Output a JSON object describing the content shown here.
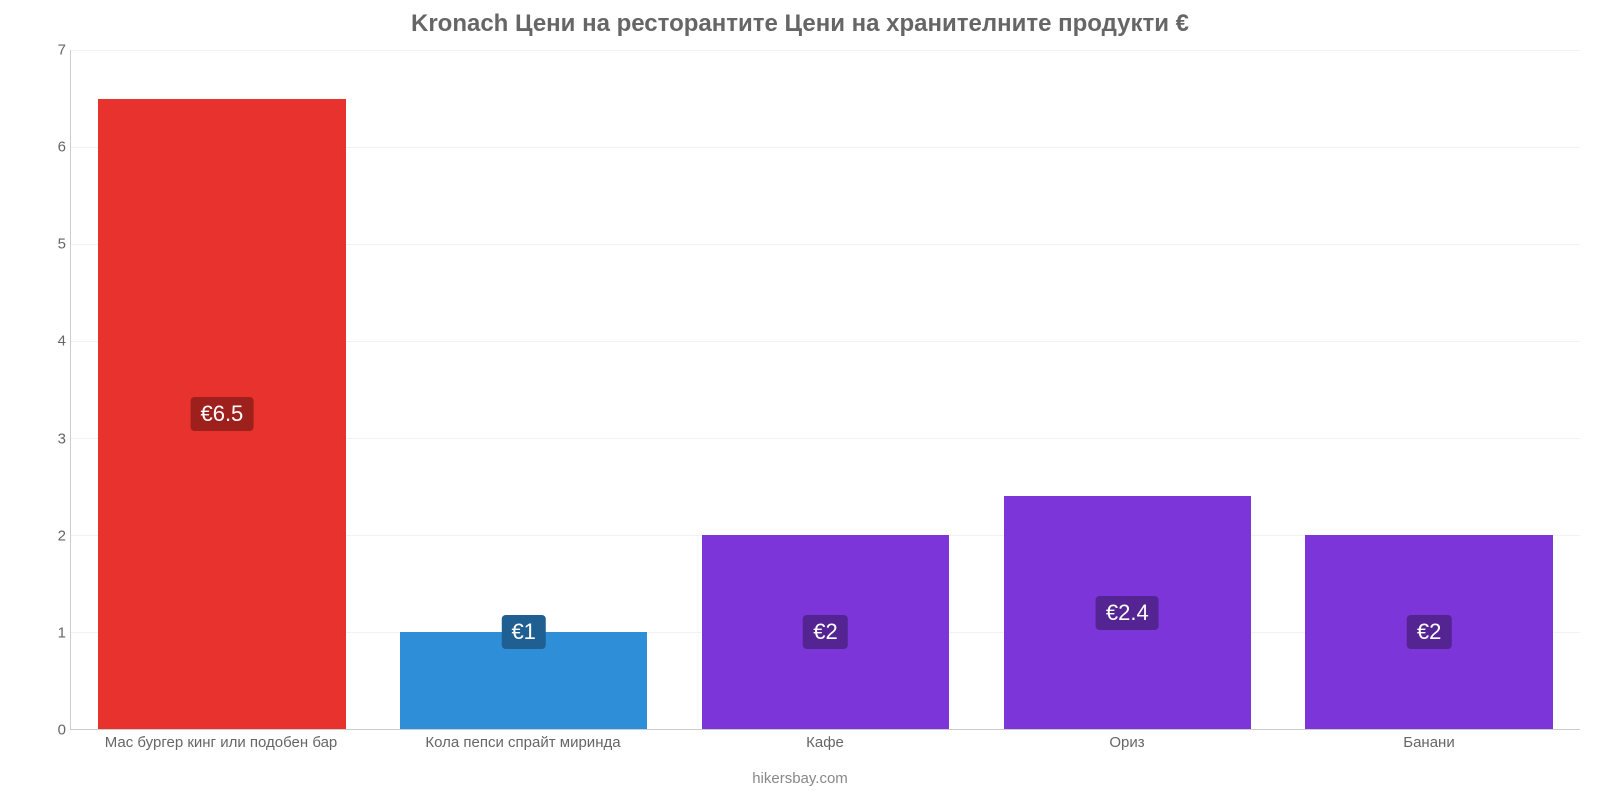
{
  "chart": {
    "type": "bar",
    "title": "Kronach Цени на ресторантите Цени на хранителните продукти €",
    "title_color": "#666666",
    "title_fontsize": 24,
    "background_color": "#ffffff",
    "grid_color": "#f2f2f2",
    "axis_color": "#cccccc",
    "label_color": "#666666",
    "label_fontsize": 15,
    "value_label_fontsize": 22,
    "ylim": [
      0,
      7
    ],
    "ytick_step": 1,
    "yticks": [
      "0",
      "1",
      "2",
      "3",
      "4",
      "5",
      "6",
      "7"
    ],
    "bar_width_pct": 82,
    "categories": [
      "Мас бургер кинг или подобен бар",
      "Кола пепси спрайт миринда",
      "Кафе",
      "Ориз",
      "Банани"
    ],
    "values": [
      6.5,
      1,
      2,
      2.4,
      2
    ],
    "value_labels": [
      "€6.5",
      "€1",
      "€2",
      "€2.4",
      "€2"
    ],
    "bar_colors": [
      "#e8322d",
      "#2f8ed8",
      "#7c35d9",
      "#7c35d9",
      "#7c35d9"
    ],
    "badge_colors": [
      "#9e201c",
      "#205f92",
      "#542493",
      "#542493",
      "#542493"
    ],
    "credit": "hikersbay.com"
  }
}
